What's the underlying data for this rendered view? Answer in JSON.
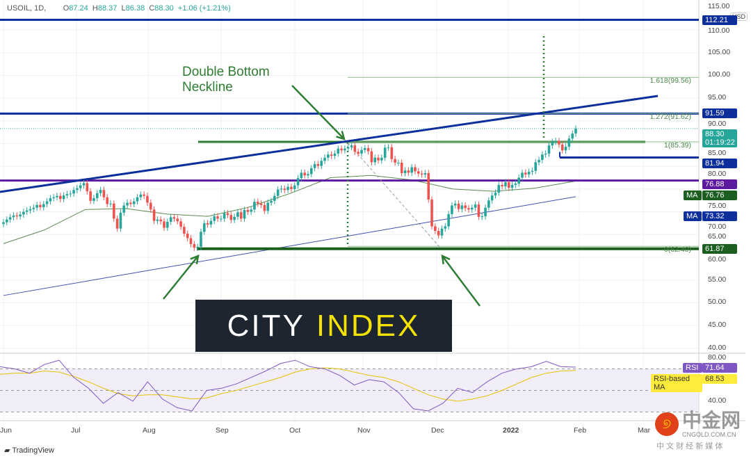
{
  "header": {
    "symbol": "USOIL, 1D,",
    "open_label": "O",
    "open": "87.24",
    "high_label": "H",
    "high": "88.37",
    "low_label": "L",
    "low": "86.38",
    "close_label": "C",
    "close": "88.30",
    "change": "+1.06 (+1.21%)"
  },
  "annotation": {
    "line1": "Double Bottom",
    "line2": "Neckline"
  },
  "logo": {
    "part1": "CITY",
    "part2": "INDEX"
  },
  "watermark": {
    "brand": "中金网",
    "domain": "CNGOLD.COM.CN",
    "tagline": "中 文 财 经 新 媒 体"
  },
  "footer": {
    "tradingview": "TradingView"
  },
  "price_axis": {
    "currency": "USD",
    "ticks": [
      "115.00",
      "110.00",
      "105.00",
      "100.00",
      "95.00",
      "90.00",
      "85.00",
      "80.00",
      "75.00",
      "70.00",
      "65.00",
      "60.00",
      "55.00",
      "50.00",
      "45.00",
      "40.00"
    ]
  },
  "price_tags": [
    {
      "value": "112.21",
      "color": "#0d2f9c"
    },
    {
      "value": "91.59",
      "color": "#0d2f9c"
    },
    {
      "value": "88.30",
      "sub": "01:19:22",
      "color": "#26a69a"
    },
    {
      "value": "81.94",
      "color": "#0d2f9c"
    },
    {
      "value": "76.88",
      "color": "#5b1aa0"
    },
    {
      "value": "76.76",
      "label": "MA",
      "color": "#1b5e20"
    },
    {
      "value": "73.32",
      "label": "MA",
      "color": "#0d2f9c"
    },
    {
      "value": "61.87",
      "color": "#1b5e20"
    }
  ],
  "fib_labels": [
    {
      "text": "1.618(99.56)",
      "level": 99.56
    },
    {
      "text": "1.272(91.62)",
      "level": 91.62
    },
    {
      "text": "1(85.39)",
      "level": 85.39
    },
    {
      "text": "0(62.40)",
      "level": 62.4
    }
  ],
  "rsi_axis": {
    "ticks": [
      "80.00",
      "40.00"
    ],
    "rsi_label": "RSI",
    "rsi_value": "71.64",
    "ma_label": "RSI-based MA",
    "ma_value": "68.53"
  },
  "chart_data": {
    "type": "candlestick",
    "title": "USOIL, 1D",
    "x_ticks": [
      "Jun",
      "Jul",
      "Aug",
      "Sep",
      "Oct",
      "Nov",
      "Dec",
      "2022",
      "Feb",
      "Mar"
    ],
    "ylim": [
      40,
      115
    ],
    "closes": [
      67.7,
      68.3,
      68.8,
      69.2,
      69.0,
      69.4,
      70.0,
      70.3,
      70.6,
      70.9,
      71.5,
      71.0,
      71.7,
      72.3,
      73.0,
      73.2,
      73.5,
      72.8,
      73.6,
      73.9,
      74.0,
      74.8,
      75.2,
      75.8,
      76.3,
      74.5,
      72.4,
      73.0,
      74.1,
      74.8,
      73.2,
      71.7,
      71.8,
      68.5,
      66.3,
      69.8,
      71.4,
      72.0,
      71.7,
      72.3,
      73.2,
      73.8,
      73.5,
      72.0,
      70.5,
      68.0,
      68.3,
      67.9,
      66.5,
      67.8,
      68.8,
      68.5,
      67.9,
      66.7,
      65.2,
      64.2,
      62.9,
      62.1,
      62.3,
      65.6,
      67.5,
      67.2,
      68.0,
      69.0,
      68.5,
      68.5,
      69.7,
      69.3,
      68.2,
      68.9,
      69.9,
      68.5,
      70.4,
      70.0,
      70.5,
      72.2,
      71.8,
      71.5,
      70.2,
      72.0,
      72.4,
      73.5,
      74.9,
      75.1,
      74.8,
      75.5,
      75.0,
      75.8,
      77.4,
      78.6,
      78.0,
      78.3,
      79.6,
      80.5,
      80.1,
      81.2,
      81.9,
      82.6,
      82.3,
      82.8,
      83.9,
      83.5,
      83.9,
      84.2,
      84.6,
      83.2,
      82.8,
      83.6,
      84.0,
      83.3,
      80.9,
      81.9,
      81.3,
      81.9,
      84.1,
      84.2,
      81.6,
      80.8,
      80.8,
      78.5,
      79.1,
      78.6,
      79.8,
      78.9,
      78.4,
      78.2,
      78.5,
      72.7,
      66.8,
      65.8,
      64.8,
      66.3,
      66.8,
      69.5,
      71.4,
      71.8,
      70.6,
      71.4,
      70.8,
      70.5,
      70.9,
      71.6,
      68.9,
      69.0,
      70.9,
      72.5,
      73.6,
      74.2,
      75.9,
      75.6,
      76.5,
      75.3,
      75.9,
      76.2,
      77.5,
      78.6,
      78.2,
      78.8,
      79.0,
      80.9,
      81.4,
      82.6,
      82.8,
      84.6,
      85.4,
      85.6,
      84.8,
      83.5,
      84.3,
      86.1,
      87.2,
      88.3
    ],
    "ma_fast": [
      63,
      66,
      70.5,
      70.7,
      69.5,
      69,
      71,
      74,
      77.5,
      78,
      77,
      75,
      74.5,
      75.2,
      76.76
    ],
    "ma_slow": [
      51.6,
      73.32
    ],
    "horizontal_levels": [
      {
        "value": 112.21,
        "color": "#0d2f9c"
      },
      {
        "value": 91.59,
        "color": "#0d2f9c"
      },
      {
        "value": 76.88,
        "color": "#5b1aa0"
      },
      {
        "value": 81.94,
        "color": "#0d2f9c"
      },
      {
        "value": 61.87,
        "color": "#1b5e20"
      },
      {
        "value": 85.39,
        "color": "#2e7d32"
      }
    ],
    "rsi": [
      72,
      70,
      66,
      74,
      78,
      62,
      52,
      38,
      48,
      40,
      58,
      42,
      34,
      31,
      50,
      52,
      56,
      62,
      68,
      75,
      78,
      72,
      70,
      64,
      55,
      60,
      58,
      48,
      33,
      31,
      38,
      52,
      48,
      58,
      66,
      70,
      72,
      77,
      72,
      71.64
    ],
    "rsi_ma": [
      65,
      66,
      66,
      68,
      67,
      63,
      58,
      52,
      47,
      45,
      46,
      46,
      44,
      42,
      43,
      47,
      50,
      54,
      58,
      62,
      67,
      70,
      71,
      70,
      67,
      64,
      62,
      58,
      52,
      46,
      42,
      40,
      42,
      45,
      50,
      56,
      62,
      66,
      68,
      68.53
    ],
    "rsi_ylim": [
      20,
      85
    ]
  }
}
